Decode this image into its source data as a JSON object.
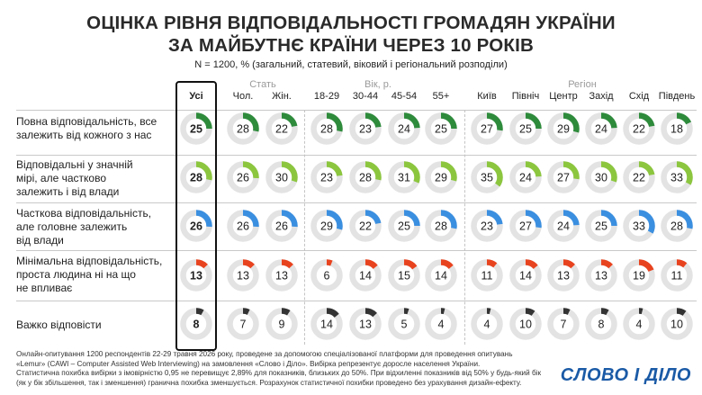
{
  "title_line1": "ОЦІНКА РІВНЯ ВІДПОВІДАЛЬНОСТІ ГРОМАДЯН УКРАЇНИ",
  "title_line2": "ЗА МАЙБУТНЄ КРАЇНИ ЧЕРЕЗ 10 РОКІВ",
  "subtitle": "N = 1200, % (загальний, статевий, віковий і регіональний розподіли)",
  "groups": {
    "sex": "Стать",
    "age": "Вік, р.",
    "region": "Регіон"
  },
  "columns": [
    "Усі",
    "Чол.",
    "Жін.",
    "18-29",
    "30-44",
    "45-54",
    "55+",
    "Київ",
    "Північ",
    "Центр",
    "Захід",
    "Схід",
    "Південь"
  ],
  "rows": [
    {
      "label": [
        "Повна відповідальність, все",
        "залежить від кожного з нас"
      ],
      "color": "#2e8b3c",
      "values": [
        25,
        28,
        22,
        28,
        23,
        24,
        25,
        27,
        25,
        29,
        24,
        22,
        18
      ]
    },
    {
      "label": [
        "Відповідальні у значній",
        "мірі, але частково",
        "залежить і від влади"
      ],
      "color": "#8cc63f",
      "values": [
        28,
        26,
        30,
        23,
        28,
        31,
        29,
        35,
        24,
        27,
        30,
        22,
        33
      ]
    },
    {
      "label": [
        "Часткова відповідальність,",
        "але головне залежить",
        "від влади"
      ],
      "color": "#3b8fe0",
      "values": [
        26,
        26,
        26,
        29,
        22,
        25,
        28,
        23,
        27,
        24,
        25,
        33,
        28
      ]
    },
    {
      "label": [
        "Мінімальна відповідальність,",
        "проста людина ні на що",
        "не впливає"
      ],
      "color": "#e8431f",
      "values": [
        13,
        13,
        13,
        6,
        14,
        15,
        14,
        11,
        14,
        13,
        13,
        19,
        11
      ]
    },
    {
      "label": [
        "Важко відповісти"
      ],
      "color": "#333333",
      "values": [
        8,
        7,
        9,
        14,
        13,
        5,
        4,
        4,
        10,
        7,
        8,
        4,
        10
      ]
    }
  ],
  "track_color": "#e3e3e3",
  "footer": [
    "Онлайн-опитування 1200 респондентів 22-29 травня 2026 року, проведене за допомогою спеціалізованої платформи для проведення опитувань",
    "«Lemur» (CAWI – Computer Assisted Web Interviewing) на замовлення «Слово і Діло». Вибірка репрезентує доросле населення України.",
    "Статистична похибка вибірки з імовірністю 0,95 не перевищує 2,89% для показників, близьких до 50%. При відхиленні показників від 50% у будь-який бік",
    "(як у бік збільшення, так і зменшення) гранична похибка зменшується. Розрахунок статистичної похибки проведено без урахування дизайн-ефекту."
  ],
  "logo": "СЛОВО І ДІЛО",
  "chart_data": {
    "type": "donut-grid",
    "categories": [
      "Повна відповідальність, все залежить від кожного з нас",
      "Відповідальні у значній мірі, але частково залежить і від влади",
      "Часткова відповідальність, але головне залежить від влади",
      "Мінімальна відповідальність, проста людина ні на що не впливає",
      "Важко відповісти"
    ],
    "groups": [
      "Усі",
      "Чол.",
      "Жін.",
      "18-29",
      "30-44",
      "45-54",
      "55+",
      "Київ",
      "Північ",
      "Центр",
      "Захід",
      "Схід",
      "Південь"
    ],
    "unit": "%"
  }
}
